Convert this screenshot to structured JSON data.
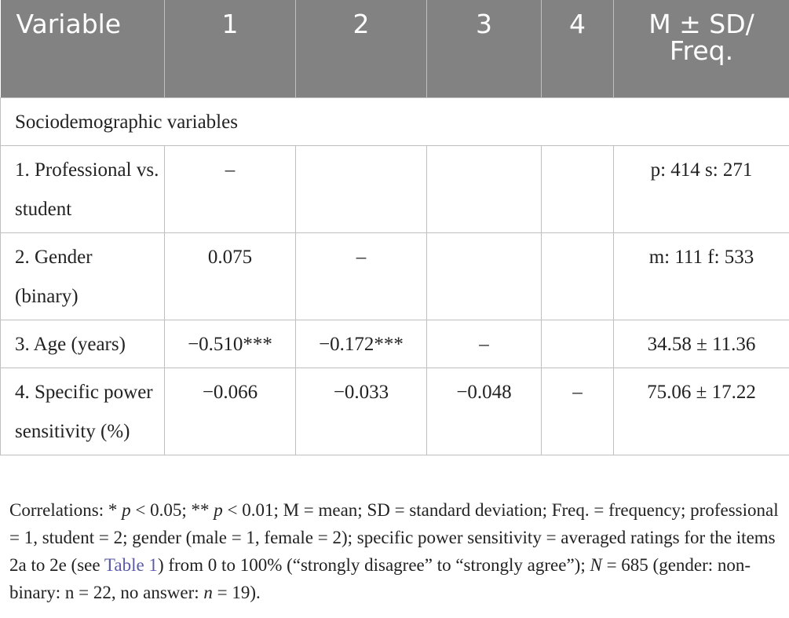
{
  "table": {
    "headers": [
      "Variable",
      "1",
      "2",
      "3",
      "4",
      "M ± SD/ Freq."
    ],
    "section_label": "Sociodemographic variables",
    "rows": [
      {
        "label": "1. Professional vs. student",
        "c1": "–",
        "c2": "",
        "c3": "",
        "c4": "",
        "m": "p: 414 s: 271"
      },
      {
        "label": "2. Gender (binary)",
        "c1": "0.075",
        "c2": "–",
        "c3": "",
        "c4": "",
        "m": "m: 111 f: 533"
      },
      {
        "label": "3. Age (years)",
        "c1": "−0.510***",
        "c2": "−0.172***",
        "c3": "–",
        "c4": "",
        "m": "34.58 ± 11.36"
      },
      {
        "label": "4. Specific power sensitivity (%)",
        "c1": "−0.066",
        "c2": "−0.033",
        "c3": "−0.048",
        "c4": "–",
        "m": "75.06 ± 17.22"
      }
    ]
  },
  "note": {
    "p1": "Correlations: * ",
    "p_sym": "p",
    "p2": " < 0.05; ** ",
    "p3": " < 0.01; M = mean; SD = standard deviation; Freq. = frequency; professional = 1, student = 2; gender (male = 1, female = 2); specific power sensitivity = averaged ratings for the items 2a to 2e (see ",
    "link": "Table 1",
    "p4": ") from 0 to 100% (“strongly disagree” to “strongly agree”); ",
    "N_sym": "N",
    "p5": " = 685 (gender: non-binary: n = 22, no answer: ",
    "n_sym": "n",
    "p6": " = 19)."
  }
}
